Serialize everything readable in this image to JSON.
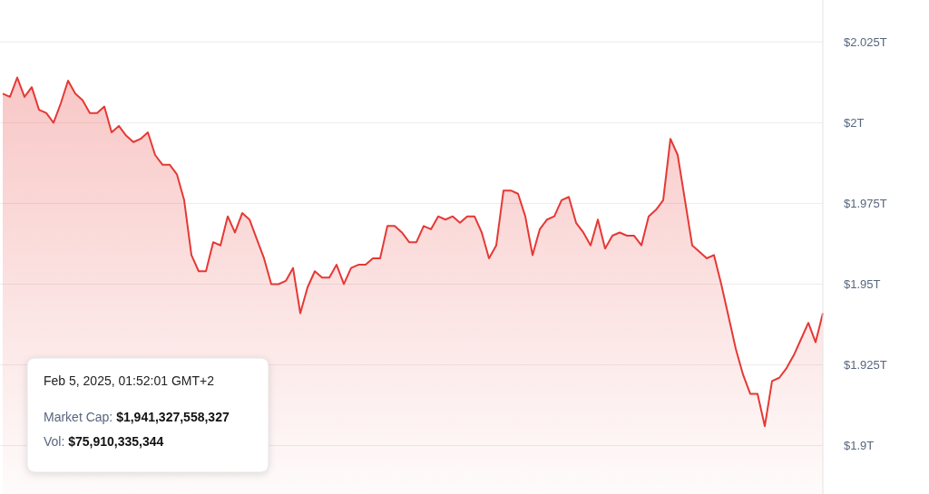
{
  "chart_data": {
    "type": "area",
    "categories": [
      null,
      null,
      null,
      null,
      null,
      null,
      null,
      null,
      null,
      null,
      null,
      null,
      null,
      null,
      null,
      null,
      null,
      null,
      null,
      null,
      null,
      null,
      null,
      null,
      null,
      null,
      null,
      null,
      null,
      null,
      null,
      null,
      null,
      null,
      null,
      null,
      null,
      null,
      null,
      null,
      null,
      null,
      null,
      null,
      null,
      null,
      null,
      null,
      null,
      null,
      null,
      null,
      null,
      null,
      null,
      null,
      null,
      null,
      null,
      null,
      null,
      null,
      null,
      null,
      null,
      null,
      null,
      null,
      null,
      null,
      null,
      null,
      null,
      null,
      null,
      null,
      null,
      null,
      null,
      null,
      null,
      null,
      null,
      null,
      null,
      null,
      null,
      null,
      null,
      null,
      null,
      null,
      null,
      null,
      null,
      null,
      null,
      null,
      null,
      null,
      null,
      null,
      null,
      null,
      null,
      null,
      null,
      null,
      null,
      null,
      null,
      null,
      null,
      null
    ],
    "series": [
      {
        "color": "#e53935",
        "values": [
          2.009,
          2.008,
          2.014,
          2.008,
          2.011,
          2.004,
          2.003,
          2.0,
          2.006,
          2.013,
          2.009,
          2.007,
          2.003,
          2.003,
          2.005,
          1.997,
          1.999,
          1.996,
          1.994,
          1.995,
          1.997,
          1.99,
          1.987,
          1.987,
          1.984,
          1.976,
          1.959,
          1.954,
          1.954,
          1.963,
          1.962,
          1.971,
          1.966,
          1.972,
          1.97,
          1.964,
          1.958,
          1.95,
          1.95,
          1.951,
          1.955,
          1.941,
          1.949,
          1.954,
          1.952,
          1.952,
          1.956,
          1.95,
          1.955,
          1.956,
          1.956,
          1.958,
          1.958,
          1.968,
          1.968,
          1.966,
          1.963,
          1.963,
          1.968,
          1.967,
          1.971,
          1.97,
          1.971,
          1.969,
          1.971,
          1.971,
          1.966,
          1.958,
          1.962,
          1.979,
          1.979,
          1.978,
          1.971,
          1.959,
          1.967,
          1.97,
          1.971,
          1.976,
          1.977,
          1.969,
          1.966,
          1.962,
          1.97,
          1.961,
          1.965,
          1.966,
          1.965,
          1.965,
          1.962,
          1.971,
          1.973,
          1.976,
          1.995,
          1.99,
          1.976,
          1.962,
          1.96,
          1.958,
          1.959,
          1.95,
          1.94,
          1.93,
          1.922,
          1.916,
          1.916,
          1.906,
          1.92,
          1.921,
          1.924,
          1.928,
          1.933,
          1.938,
          1.932,
          1.941
        ]
      }
    ],
    "ylim": [
      1.885,
      2.038
    ],
    "yticks": [
      {
        "value": 2.025,
        "label": "$2.025T"
      },
      {
        "value": 2.0,
        "label": "$2T"
      },
      {
        "value": 1.975,
        "label": "$1.975T"
      },
      {
        "value": 1.95,
        "label": "$1.95T"
      },
      {
        "value": 1.925,
        "label": "$1.925T"
      },
      {
        "value": 1.9,
        "label": "$1.9T"
      }
    ],
    "grid": "y",
    "annotations": [
      "Feb 5, 2025, 01:52:01 GMT+2",
      "Market Cap: $1,941,327,558,327",
      "Vol: $75,910,335,344"
    ]
  }
}
